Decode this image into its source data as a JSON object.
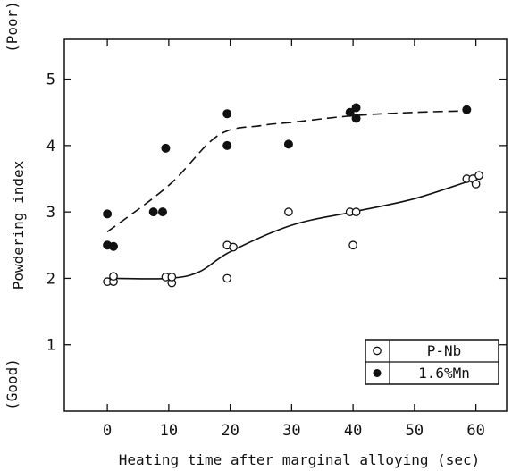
{
  "chart_data": {
    "type": "scatter",
    "xlabel": "Heating time after marginal alloying (sec)",
    "ylabel": "Powdering index",
    "y_top_note": "(Poor)",
    "y_bottom_note": "(Good)",
    "xlim": [
      -7,
      65
    ],
    "ylim": [
      0,
      5.6
    ],
    "x_ticks": [
      0,
      10,
      20,
      30,
      40,
      50,
      60
    ],
    "y_ticks": [
      1,
      2,
      3,
      4,
      5
    ],
    "grid": false,
    "legend_position": "bottom-right",
    "series": [
      {
        "name": "P-Nb",
        "marker": "open-circle",
        "points": [
          [
            0,
            1.95
          ],
          [
            1,
            1.95
          ],
          [
            1,
            2.03
          ],
          [
            9.5,
            2.02
          ],
          [
            10.5,
            1.93
          ],
          [
            10.5,
            2.02
          ],
          [
            19.5,
            2.5
          ],
          [
            20.5,
            2.47
          ],
          [
            19.5,
            2.0
          ],
          [
            29.5,
            3.0
          ],
          [
            39.5,
            3.0
          ],
          [
            40.5,
            3.0
          ],
          [
            40,
            2.5
          ],
          [
            58.5,
            3.5
          ],
          [
            59.5,
            3.5
          ],
          [
            60.5,
            3.55
          ],
          [
            60,
            3.42
          ]
        ],
        "fit": [
          [
            0,
            2.0
          ],
          [
            10,
            2.0
          ],
          [
            15,
            2.1
          ],
          [
            20,
            2.4
          ],
          [
            30,
            2.8
          ],
          [
            40,
            3.0
          ],
          [
            50,
            3.2
          ],
          [
            60,
            3.5
          ]
        ],
        "fit_style": "solid"
      },
      {
        "name": "1.6%Mn",
        "marker": "filled-circle",
        "points": [
          [
            0,
            2.97
          ],
          [
            0,
            2.5
          ],
          [
            1,
            2.48
          ],
          [
            7.5,
            3.0
          ],
          [
            9,
            3.0
          ],
          [
            9.5,
            3.96
          ],
          [
            19.5,
            4.48
          ],
          [
            19.5,
            4.0
          ],
          [
            29.5,
            4.02
          ],
          [
            39.5,
            4.5
          ],
          [
            40.5,
            4.57
          ],
          [
            40.5,
            4.41
          ],
          [
            58.5,
            4.54
          ]
        ],
        "fit": [
          [
            0,
            2.7
          ],
          [
            10,
            3.4
          ],
          [
            18,
            4.15
          ],
          [
            25,
            4.3
          ],
          [
            30,
            4.35
          ],
          [
            40,
            4.45
          ],
          [
            50,
            4.5
          ],
          [
            58,
            4.52
          ]
        ],
        "fit_style": "dashed"
      }
    ]
  }
}
